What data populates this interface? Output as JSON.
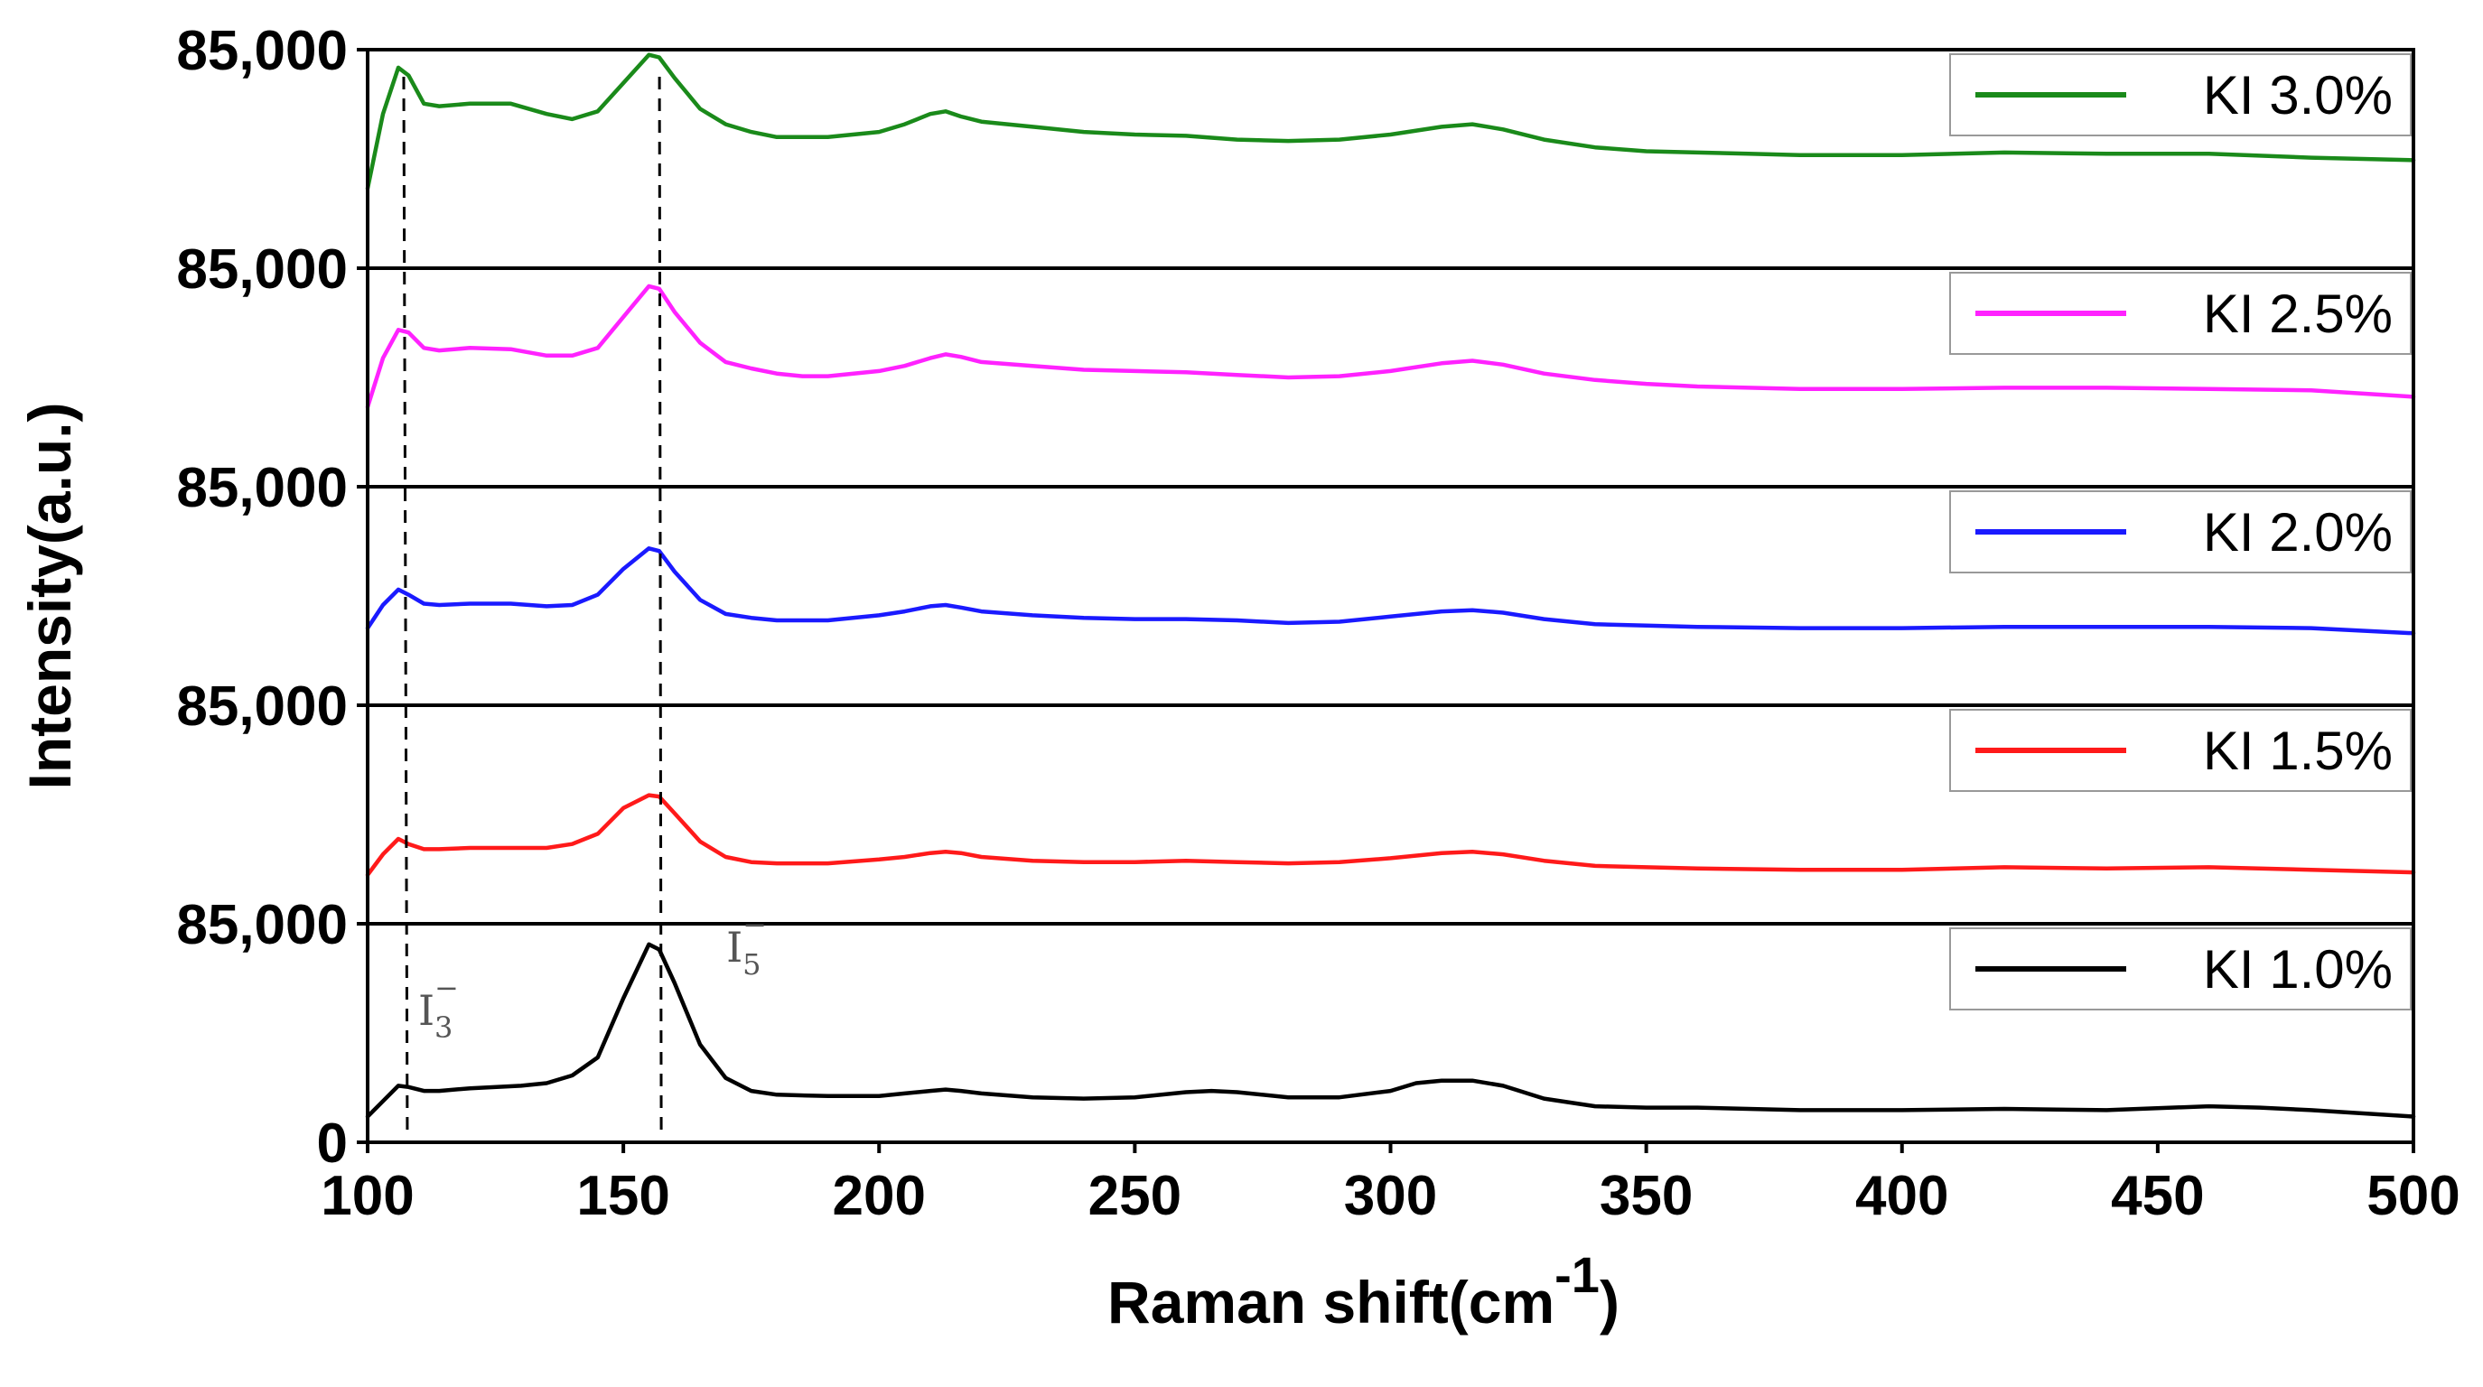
{
  "chart_data": {
    "type": "line",
    "title": "",
    "xlabel": "Raman shift(cm",
    "xlabel_sup": "-1",
    "xlabel_close": ")",
    "ylabel": "Intensity(a.u.)",
    "xlim": [
      100,
      500
    ],
    "x_ticks": [
      100,
      150,
      200,
      250,
      300,
      350,
      400,
      450,
      500
    ],
    "y_tick_labels": [
      "85,000",
      "85,000",
      "85,000",
      "85,000",
      "85,000",
      "0"
    ],
    "panel_ylim": [
      0,
      85000
    ],
    "layout": "stacked panels, top to bottom: KI 3.0%, KI 2.5%, KI 2.0%, KI 1.5%, KI 1.0%",
    "legend_position": "top-right of each panel",
    "reference_lines": [
      {
        "x": 106,
        "label": "I3-",
        "label_main": "I",
        "label_sub": "3",
        "label_sup": "−",
        "style": "dashed"
      },
      {
        "x": 156,
        "label": "I5-",
        "label_main": "I",
        "label_sub": "5",
        "label_sup": "−",
        "style": "dashed"
      }
    ],
    "series": [
      {
        "name": "KI 3.0%",
        "color": "#1a8a1a",
        "points": [
          [
            100,
            31000
          ],
          [
            103,
            60000
          ],
          [
            106,
            78000
          ],
          [
            108,
            75000
          ],
          [
            111,
            64000
          ],
          [
            114,
            63000
          ],
          [
            120,
            64000
          ],
          [
            128,
            64000
          ],
          [
            135,
            60000
          ],
          [
            140,
            58000
          ],
          [
            145,
            61000
          ],
          [
            150,
            72000
          ],
          [
            155,
            83000
          ],
          [
            157,
            82000
          ],
          [
            160,
            74000
          ],
          [
            165,
            62000
          ],
          [
            170,
            56000
          ],
          [
            175,
            53000
          ],
          [
            180,
            51000
          ],
          [
            190,
            51000
          ],
          [
            200,
            53000
          ],
          [
            205,
            56000
          ],
          [
            210,
            60000
          ],
          [
            213,
            61000
          ],
          [
            216,
            59000
          ],
          [
            220,
            57000
          ],
          [
            230,
            55000
          ],
          [
            240,
            53000
          ],
          [
            250,
            52000
          ],
          [
            260,
            51500
          ],
          [
            270,
            50000
          ],
          [
            280,
            49500
          ],
          [
            290,
            50000
          ],
          [
            300,
            52000
          ],
          [
            310,
            55000
          ],
          [
            316,
            56000
          ],
          [
            322,
            54000
          ],
          [
            330,
            50000
          ],
          [
            340,
            47000
          ],
          [
            350,
            45500
          ],
          [
            360,
            45000
          ],
          [
            370,
            44500
          ],
          [
            380,
            44000
          ],
          [
            400,
            44000
          ],
          [
            420,
            45000
          ],
          [
            440,
            44500
          ],
          [
            460,
            44500
          ],
          [
            480,
            43000
          ],
          [
            500,
            42000
          ]
        ]
      },
      {
        "name": "KI 2.5%",
        "color": "#ff22ff",
        "points": [
          [
            100,
            31000
          ],
          [
            103,
            50000
          ],
          [
            106,
            61000
          ],
          [
            108,
            60000
          ],
          [
            111,
            54000
          ],
          [
            114,
            53000
          ],
          [
            120,
            54000
          ],
          [
            128,
            53500
          ],
          [
            135,
            51000
          ],
          [
            140,
            51000
          ],
          [
            145,
            54000
          ],
          [
            150,
            66000
          ],
          [
            155,
            78000
          ],
          [
            157,
            77000
          ],
          [
            160,
            68000
          ],
          [
            165,
            56000
          ],
          [
            170,
            48500
          ],
          [
            175,
            46000
          ],
          [
            180,
            44000
          ],
          [
            185,
            43000
          ],
          [
            190,
            43000
          ],
          [
            200,
            45000
          ],
          [
            205,
            47000
          ],
          [
            210,
            50000
          ],
          [
            213,
            51500
          ],
          [
            216,
            50500
          ],
          [
            220,
            48500
          ],
          [
            230,
            47000
          ],
          [
            240,
            45500
          ],
          [
            250,
            45000
          ],
          [
            260,
            44500
          ],
          [
            270,
            43500
          ],
          [
            280,
            42500
          ],
          [
            290,
            43000
          ],
          [
            300,
            45000
          ],
          [
            310,
            48000
          ],
          [
            316,
            49000
          ],
          [
            322,
            47500
          ],
          [
            330,
            44000
          ],
          [
            340,
            41500
          ],
          [
            350,
            40000
          ],
          [
            360,
            39000
          ],
          [
            380,
            38000
          ],
          [
            400,
            38000
          ],
          [
            420,
            38500
          ],
          [
            440,
            38500
          ],
          [
            460,
            38000
          ],
          [
            480,
            37500
          ],
          [
            500,
            35000
          ]
        ]
      },
      {
        "name": "KI 2.0%",
        "color": "#1a1aff",
        "points": [
          [
            100,
            30000
          ],
          [
            103,
            39000
          ],
          [
            106,
            45000
          ],
          [
            108,
            43000
          ],
          [
            111,
            39500
          ],
          [
            114,
            39000
          ],
          [
            120,
            39500
          ],
          [
            128,
            39500
          ],
          [
            135,
            38500
          ],
          [
            140,
            39000
          ],
          [
            145,
            43000
          ],
          [
            150,
            53000
          ],
          [
            155,
            61000
          ],
          [
            157,
            60000
          ],
          [
            160,
            52000
          ],
          [
            165,
            41000
          ],
          [
            170,
            35500
          ],
          [
            175,
            34000
          ],
          [
            180,
            33000
          ],
          [
            190,
            33000
          ],
          [
            200,
            35000
          ],
          [
            205,
            36500
          ],
          [
            210,
            38500
          ],
          [
            213,
            39000
          ],
          [
            216,
            38000
          ],
          [
            220,
            36500
          ],
          [
            230,
            35000
          ],
          [
            240,
            34000
          ],
          [
            250,
            33500
          ],
          [
            260,
            33500
          ],
          [
            270,
            33000
          ],
          [
            280,
            32000
          ],
          [
            290,
            32500
          ],
          [
            300,
            34500
          ],
          [
            310,
            36500
          ],
          [
            316,
            37000
          ],
          [
            322,
            36000
          ],
          [
            330,
            33500
          ],
          [
            340,
            31500
          ],
          [
            350,
            31000
          ],
          [
            360,
            30500
          ],
          [
            380,
            30000
          ],
          [
            400,
            30000
          ],
          [
            420,
            30500
          ],
          [
            440,
            30500
          ],
          [
            460,
            30500
          ],
          [
            480,
            30000
          ],
          [
            500,
            28000
          ]
        ]
      },
      {
        "name": "KI 1.5%",
        "color": "#ff1a1a",
        "points": [
          [
            100,
            19000
          ],
          [
            103,
            27000
          ],
          [
            106,
            33000
          ],
          [
            108,
            31000
          ],
          [
            111,
            29000
          ],
          [
            114,
            29000
          ],
          [
            120,
            29500
          ],
          [
            128,
            29500
          ],
          [
            135,
            29500
          ],
          [
            140,
            31000
          ],
          [
            145,
            35000
          ],
          [
            150,
            45000
          ],
          [
            155,
            50000
          ],
          [
            157,
            49500
          ],
          [
            160,
            43000
          ],
          [
            165,
            32000
          ],
          [
            170,
            26000
          ],
          [
            175,
            24000
          ],
          [
            180,
            23500
          ],
          [
            190,
            23500
          ],
          [
            200,
            25000
          ],
          [
            205,
            26000
          ],
          [
            210,
            27500
          ],
          [
            213,
            28000
          ],
          [
            216,
            27500
          ],
          [
            220,
            26000
          ],
          [
            230,
            24500
          ],
          [
            240,
            24000
          ],
          [
            250,
            24000
          ],
          [
            260,
            24500
          ],
          [
            270,
            24000
          ],
          [
            280,
            23500
          ],
          [
            290,
            24000
          ],
          [
            300,
            25500
          ],
          [
            310,
            27500
          ],
          [
            316,
            28000
          ],
          [
            322,
            27000
          ],
          [
            330,
            24500
          ],
          [
            340,
            22500
          ],
          [
            350,
            22000
          ],
          [
            360,
            21500
          ],
          [
            380,
            21000
          ],
          [
            400,
            21000
          ],
          [
            420,
            22000
          ],
          [
            440,
            21500
          ],
          [
            460,
            22000
          ],
          [
            480,
            21000
          ],
          [
            500,
            20000
          ]
        ]
      },
      {
        "name": "KI 1.0%",
        "color": "#000000",
        "points": [
          [
            100,
            10000
          ],
          [
            103,
            16000
          ],
          [
            106,
            22000
          ],
          [
            108,
            21500
          ],
          [
            111,
            20000
          ],
          [
            114,
            20000
          ],
          [
            120,
            21000
          ],
          [
            130,
            22000
          ],
          [
            135,
            23000
          ],
          [
            140,
            26000
          ],
          [
            145,
            33000
          ],
          [
            150,
            56000
          ],
          [
            155,
            77000
          ],
          [
            157,
            75000
          ],
          [
            160,
            62000
          ],
          [
            165,
            38000
          ],
          [
            170,
            25000
          ],
          [
            175,
            20000
          ],
          [
            180,
            18500
          ],
          [
            190,
            18000
          ],
          [
            200,
            18000
          ],
          [
            205,
            19000
          ],
          [
            210,
            20000
          ],
          [
            213,
            20500
          ],
          [
            216,
            20000
          ],
          [
            220,
            19000
          ],
          [
            230,
            17500
          ],
          [
            240,
            17000
          ],
          [
            250,
            17500
          ],
          [
            260,
            19500
          ],
          [
            265,
            20000
          ],
          [
            270,
            19500
          ],
          [
            280,
            17500
          ],
          [
            290,
            17500
          ],
          [
            300,
            20000
          ],
          [
            305,
            23000
          ],
          [
            310,
            24000
          ],
          [
            316,
            24000
          ],
          [
            322,
            22000
          ],
          [
            330,
            17000
          ],
          [
            340,
            14000
          ],
          [
            350,
            13500
          ],
          [
            360,
            13500
          ],
          [
            380,
            12500
          ],
          [
            400,
            12500
          ],
          [
            420,
            13000
          ],
          [
            440,
            12500
          ],
          [
            460,
            14000
          ],
          [
            470,
            13500
          ],
          [
            480,
            12500
          ],
          [
            500,
            10000
          ]
        ]
      }
    ]
  }
}
